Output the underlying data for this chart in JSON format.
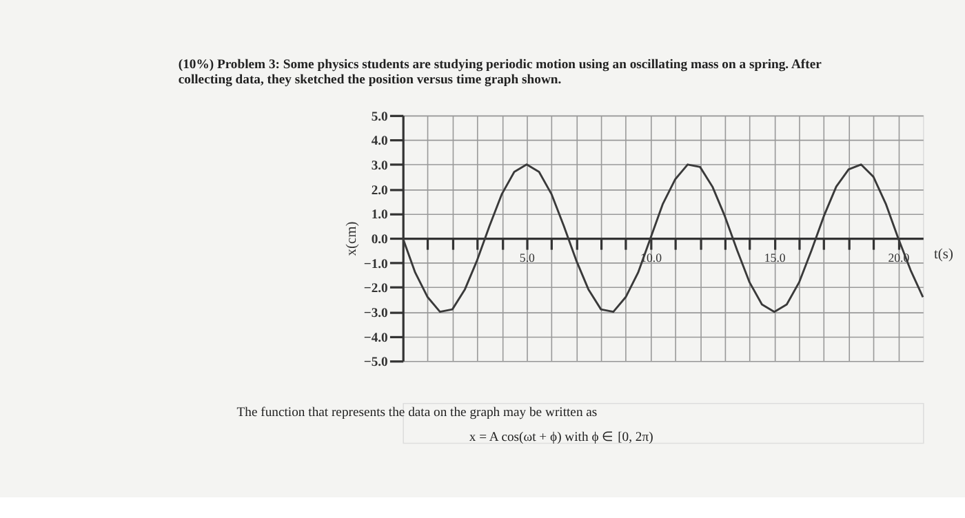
{
  "chart_data": {
    "type": "line",
    "title": "(10%) Problem 3: Some physics students are studying periodic motion using an oscillating mass on a spring. After collecting data, they sketched the position versus time graph shown.",
    "xlabel": "t(s)",
    "ylabel": "x(cm)",
    "x": [
      0,
      0.5,
      1,
      1.5,
      2,
      2.5,
      3,
      3.5,
      4,
      4.5,
      5,
      5.5,
      6,
      6.5,
      7,
      7.5,
      8,
      8.5,
      9,
      9.5,
      10,
      10.5,
      11,
      11.5,
      12,
      12.5,
      13,
      13.5,
      14,
      14.5,
      15,
      15.5,
      16,
      16.5,
      17,
      17.5,
      18,
      18.5,
      19,
      19.5,
      20,
      20.5,
      21
    ],
    "series": [
      {
        "color": "#3a3a3a",
        "values": [
          0,
          -1.4,
          -2.4,
          -3.0,
          -2.9,
          -2.1,
          -0.9,
          0.5,
          1.8,
          2.7,
          3.0,
          2.7,
          1.8,
          0.5,
          -0.9,
          -2.1,
          -2.9,
          -3.0,
          -2.4,
          -1.4,
          0,
          1.4,
          2.4,
          3.0,
          2.9,
          2.1,
          0.9,
          -0.5,
          -1.8,
          -2.7,
          -3.0,
          -2.7,
          -1.8,
          -0.5,
          0.9,
          2.1,
          2.8,
          3.0,
          2.5,
          1.4,
          0,
          -1.3,
          -2.4
        ]
      }
    ],
    "xlim": [
      0,
      21
    ],
    "ylim": [
      -5,
      5
    ],
    "xticks": [
      {
        "value": 1,
        "label": null
      },
      {
        "value": 2,
        "label": null
      },
      {
        "value": 3,
        "label": null
      },
      {
        "value": 4,
        "label": null
      },
      {
        "value": 5,
        "label": "5.0"
      },
      {
        "value": 6,
        "label": null
      },
      {
        "value": 7,
        "label": null
      },
      {
        "value": 8,
        "label": null
      },
      {
        "value": 9,
        "label": null
      },
      {
        "value": 10,
        "label": "10.0"
      },
      {
        "value": 11,
        "label": null
      },
      {
        "value": 12,
        "label": null
      },
      {
        "value": 13,
        "label": null
      },
      {
        "value": 14,
        "label": null
      },
      {
        "value": 15,
        "label": "15.0"
      },
      {
        "value": 16,
        "label": null
      },
      {
        "value": 17,
        "label": null
      },
      {
        "value": 18,
        "label": null
      },
      {
        "value": 19,
        "label": null
      },
      {
        "value": 20,
        "label": "20.0"
      }
    ],
    "yticks": [
      {
        "value": 5,
        "label": "5.0"
      },
      {
        "value": 4,
        "label": "4.0"
      },
      {
        "value": 3,
        "label": "3.0"
      },
      {
        "value": 2,
        "label": "2.0"
      },
      {
        "value": 1,
        "label": "1.0"
      },
      {
        "value": 0,
        "label": "0.0"
      },
      {
        "value": -1,
        "label": "−1.0"
      },
      {
        "value": -2,
        "label": "−2.0"
      },
      {
        "value": -3,
        "label": "−3.0"
      },
      {
        "value": -4,
        "label": "−4.0"
      },
      {
        "value": -5,
        "label": "−5.0"
      }
    ],
    "grid": true,
    "marker": "none",
    "line_style": "solid",
    "annotations": [
      "The function that represents the data on the graph may be written as",
      "x = A cos(ωt + ϕ)   with   ϕ ∈ [0, 2π)"
    ]
  }
}
